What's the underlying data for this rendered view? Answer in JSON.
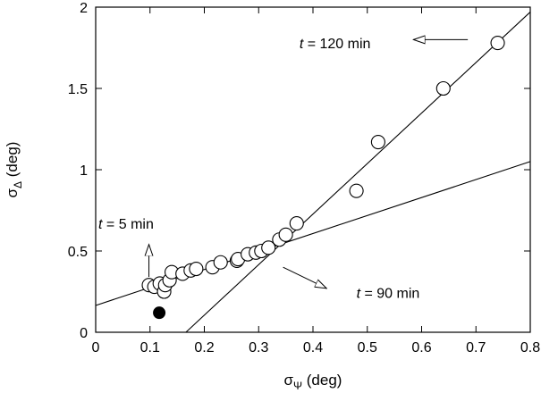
{
  "chart_data": {
    "type": "scatter",
    "title": "",
    "xlabel": {
      "base": "σ",
      "sub": "Ψ",
      "unit": " (deg)"
    },
    "ylabel": {
      "base": "σ",
      "sub": "Δ",
      "unit": " (deg)"
    },
    "xlim": [
      0,
      0.8
    ],
    "ylim": [
      0,
      2
    ],
    "x_ticks": [
      0,
      0.1,
      0.2,
      0.3,
      0.4,
      0.5,
      0.6,
      0.7,
      0.8
    ],
    "x_tick_labels": [
      "0",
      "0.1",
      "0.2",
      "0.3",
      "0.4",
      "0.5",
      "0.6",
      "0.7",
      "0.8"
    ],
    "y_ticks": [
      0,
      0.5,
      1,
      1.5,
      2
    ],
    "y_tick_labels": [
      "0",
      "0.5",
      "1",
      "1.5",
      "2"
    ],
    "grid": false,
    "open_points": [
      {
        "x": 0.098,
        "y": 0.29
      },
      {
        "x": 0.108,
        "y": 0.28
      },
      {
        "x": 0.118,
        "y": 0.3
      },
      {
        "x": 0.126,
        "y": 0.25
      },
      {
        "x": 0.128,
        "y": 0.29
      },
      {
        "x": 0.136,
        "y": 0.32
      },
      {
        "x": 0.14,
        "y": 0.37
      },
      {
        "x": 0.16,
        "y": 0.36
      },
      {
        "x": 0.175,
        "y": 0.38
      },
      {
        "x": 0.185,
        "y": 0.39
      },
      {
        "x": 0.215,
        "y": 0.4
      },
      {
        "x": 0.23,
        "y": 0.43
      },
      {
        "x": 0.26,
        "y": 0.44
      },
      {
        "x": 0.262,
        "y": 0.45
      },
      {
        "x": 0.28,
        "y": 0.48
      },
      {
        "x": 0.295,
        "y": 0.49
      },
      {
        "x": 0.305,
        "y": 0.5
      },
      {
        "x": 0.318,
        "y": 0.52
      },
      {
        "x": 0.338,
        "y": 0.57
      },
      {
        "x": 0.35,
        "y": 0.6
      },
      {
        "x": 0.37,
        "y": 0.67
      },
      {
        "x": 0.48,
        "y": 0.87
      },
      {
        "x": 0.52,
        "y": 1.17
      },
      {
        "x": 0.64,
        "y": 1.5
      },
      {
        "x": 0.74,
        "y": 1.78
      }
    ],
    "filled_points": [
      {
        "x": 0.117,
        "y": 0.12
      }
    ],
    "lines": [
      {
        "x": [
          0,
          0.8
        ],
        "y": [
          0.165,
          1.05
        ]
      },
      {
        "x": [
          0.15,
          0.8
        ],
        "y": [
          -0.05,
          1.97
        ]
      }
    ],
    "annotations": [
      {
        "parts": [
          {
            "text": "t",
            "italic": true
          },
          {
            "text": " = 5 min",
            "italic": false
          }
        ],
        "label_at": [
          0.005,
          0.67
        ],
        "arrow_from": [
          0.098,
          0.34
        ],
        "arrow_to": [
          0.098,
          0.54
        ]
      },
      {
        "parts": [
          {
            "text": "t",
            "italic": true
          },
          {
            "text": " = 120 min",
            "italic": false
          }
        ],
        "label_at": [
          0.375,
          1.78
        ],
        "arrow_from": [
          0.685,
          1.8
        ],
        "arrow_to": [
          0.585,
          1.8
        ]
      },
      {
        "parts": [
          {
            "text": "t",
            "italic": true
          },
          {
            "text": " = 90 min",
            "italic": false
          }
        ],
        "label_at": [
          0.48,
          0.245
        ],
        "arrow_from": [
          0.345,
          0.4
        ],
        "arrow_to": [
          0.425,
          0.27
        ]
      }
    ],
    "colors": {
      "ink": "#000000",
      "marker_fill": "#ffffff"
    }
  }
}
